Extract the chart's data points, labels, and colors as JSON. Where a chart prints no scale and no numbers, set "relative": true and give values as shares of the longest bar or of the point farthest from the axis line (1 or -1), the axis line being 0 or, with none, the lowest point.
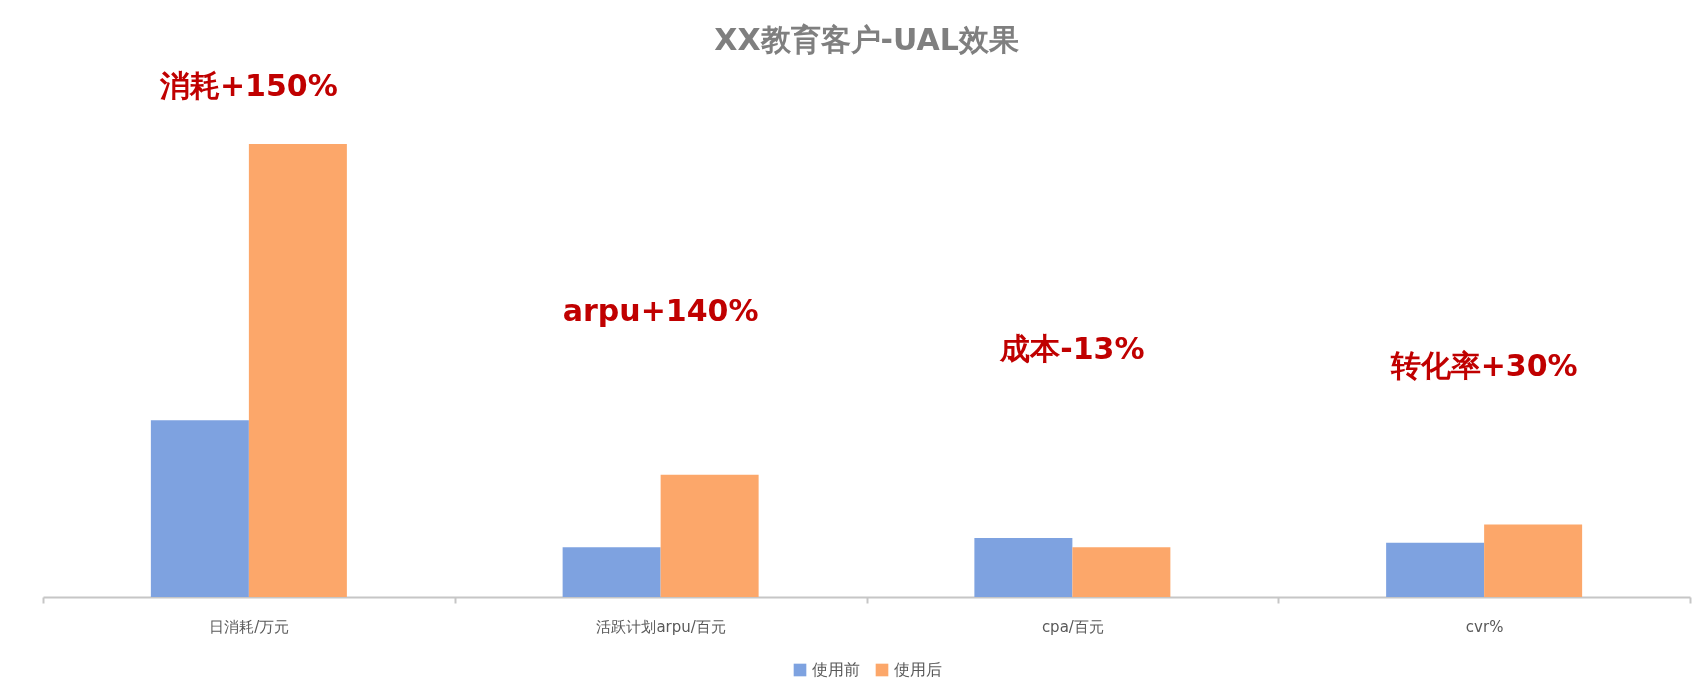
{
  "chart_data": {
    "type": "bar",
    "title": "XX教育客户-UAL效果",
    "categories": [
      "日消耗/万元",
      "活跃计划arpu/百元",
      "cpa/百元",
      "cvr%"
    ],
    "series": [
      {
        "name": "使用前",
        "color": "#7ea2e0",
        "values": [
          0.39,
          0.11,
          0.13,
          0.12
        ]
      },
      {
        "name": "使用后",
        "color": "#fca76a",
        "values": [
          1,
          0.27,
          0.11,
          0.16
        ]
      }
    ],
    "relative": true,
    "legend": "bottom",
    "annotations": [
      "消耗+150%",
      "arpu+140%",
      "成本-13%",
      "转化率+30%"
    ]
  }
}
